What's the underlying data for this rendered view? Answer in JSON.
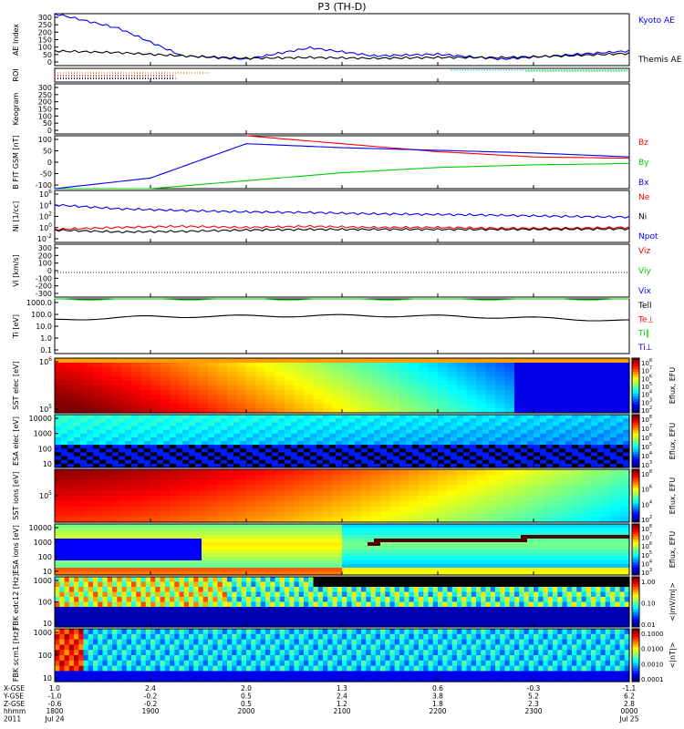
{
  "title": "P3 (TH-D)",
  "colors": {
    "blue": "#0000ff",
    "red": "#ff0000",
    "green": "#00cc00",
    "black": "#000000",
    "orange": "#ff8800",
    "cyan": "#00cccc"
  },
  "panels": {
    "ae": {
      "ylabel": "AE Index",
      "yticks": [
        "300",
        "250",
        "200",
        "150",
        "100",
        "50",
        "0"
      ],
      "legend": [
        "Kyoto AE",
        "Themis AE"
      ]
    },
    "roi": {
      "ylabel": "ROI"
    },
    "keogram": {
      "ylabel": "Keogram",
      "yticks": [
        "300",
        "250",
        "200",
        "150",
        "100",
        "50",
        "0"
      ]
    },
    "bfit": {
      "ylabel": "B FIT GSM [nT]",
      "yticks": [
        "100",
        "50",
        "0",
        "-50",
        "-100"
      ],
      "legend": [
        "Bz",
        "By",
        "Bx"
      ]
    },
    "ni": {
      "ylabel": "Ni [1/cc]",
      "yticks": [
        "10^6",
        "10^4",
        "10^2",
        "10^0",
        "10^-2"
      ],
      "legend": [
        "Ne",
        "Ni",
        "Npot"
      ]
    },
    "vi": {
      "ylabel": "Vi [km/s]",
      "yticks": [
        "300",
        "200",
        "100",
        "0",
        "-100",
        "-200",
        "-300"
      ],
      "legend": [
        "Viz",
        "Viy",
        "Vix"
      ]
    },
    "ti": {
      "ylabel": "Ti [eV]",
      "yticks": [
        "1000.0",
        "100.0",
        "10.0",
        "1.0",
        "0.1"
      ],
      "legend": [
        "Tell",
        "Te⊥",
        "Ti‖",
        "Ti⊥"
      ]
    },
    "sst_e": {
      "ylabel": "SST elec [eV]",
      "yticks": [
        "10^6",
        "10^5"
      ],
      "cbar_label": "Eflux, EFU",
      "cbar_ticks": [
        "10^8",
        "10^7",
        "10^6",
        "10^5",
        "10^4",
        "10^3",
        "10^2"
      ]
    },
    "esa_e": {
      "ylabel": "ESA elec [eV]",
      "yticks": [
        "10000",
        "1000",
        "100",
        "10"
      ],
      "cbar_label": "Eflux, EFU",
      "cbar_ticks": [
        "10^8",
        "10^7",
        "10^6",
        "10^5",
        "10^4",
        "10^3"
      ]
    },
    "sst_i": {
      "ylabel": "SST ions [eV]",
      "yticks": [
        "10^5"
      ],
      "cbar_label": "Eflux, EFU",
      "cbar_ticks": [
        "10^8",
        "10^6",
        "10^4",
        "10^2"
      ]
    },
    "esa_i": {
      "ylabel": "ESA ions [eV]",
      "yticks": [
        "10000",
        "1000",
        "100",
        "10"
      ],
      "cbar_label": "Eflux, EFU",
      "cbar_ticks": [
        "10^8",
        "10^7",
        "10^6",
        "10^5",
        "10^4",
        "10^3"
      ]
    },
    "fbk_edc": {
      "ylabel": "FBK edc12 [Hz]",
      "yticks": [
        "1000",
        "100",
        "10"
      ],
      "cbar_label": "<|mV/m|>",
      "cbar_ticks": [
        "1.00",
        "0.10",
        "0.01"
      ]
    },
    "fbk_scm": {
      "ylabel": "FBK scm1 [Hz]",
      "yticks": [
        "1000",
        "100",
        "10"
      ],
      "cbar_label": "<|nT|>",
      "cbar_ticks": [
        "0.1000",
        "0.0100",
        "0.0010",
        "0.0001"
      ]
    }
  },
  "xaxis": {
    "row_labels": [
      "X-GSE",
      "Y-GSE",
      "Z-GSE",
      "hhmm",
      "2011"
    ],
    "ticks": [
      {
        "x": "1.0",
        "y": "-1.0",
        "z": "-0.6",
        "time": "1800",
        "date": "Jul 24"
      },
      {
        "x": "2.4",
        "y": "-0.2",
        "z": "-0.2",
        "time": "1900",
        "date": ""
      },
      {
        "x": "2.0",
        "y": "0.5",
        "z": "0.5",
        "time": "2000",
        "date": ""
      },
      {
        "x": "1.3",
        "y": "2.4",
        "z": "1.2",
        "time": "2100",
        "date": ""
      },
      {
        "x": "0.6",
        "y": "3.8",
        "z": "1.8",
        "time": "2200",
        "date": ""
      },
      {
        "x": "-0.3",
        "y": "5.2",
        "z": "2.3",
        "time": "2300",
        "date": ""
      },
      {
        "x": "-1.1",
        "y": "6.2",
        "z": "2.8",
        "time": "0000",
        "date": "Jul 25"
      }
    ]
  },
  "chart_data": {
    "type": "line",
    "title": "P3 (TH-D)",
    "x_times": [
      "1800",
      "1900",
      "2000",
      "2100",
      "2200",
      "2300",
      "0000"
    ],
    "ae_index": {
      "ylim": [
        0,
        320
      ],
      "series": [
        {
          "name": "Kyoto AE",
          "values": [
            320,
            230,
            60,
            40,
            110,
            60,
            70,
            40,
            65,
            90
          ]
        },
        {
          "name": "Themis AE",
          "values": [
            90,
            80,
            60,
            45,
            50,
            45,
            50,
            50,
            60,
            75
          ]
        }
      ]
    },
    "b_fit": {
      "ylim": [
        -100,
        100
      ],
      "series": [
        {
          "name": "Bz",
          "values": [
            null,
            null,
            100,
            70,
            40,
            20,
            15
          ]
        },
        {
          "name": "By",
          "values": [
            -100,
            -100,
            -70,
            -40,
            -20,
            -10,
            -5
          ]
        },
        {
          "name": "Bx",
          "values": [
            -100,
            -60,
            70,
            55,
            45,
            35,
            20
          ]
        }
      ]
    },
    "ti": {
      "ylim": [
        0.1,
        1000
      ],
      "series": [
        {
          "name": "Tell",
          "values": [
            30,
            50,
            55,
            60,
            55,
            40,
            25
          ]
        },
        {
          "name": "Ti‖",
          "values": [
            2500,
            1200,
            1800,
            2200,
            2500,
            2200,
            1500
          ]
        }
      ]
    }
  }
}
